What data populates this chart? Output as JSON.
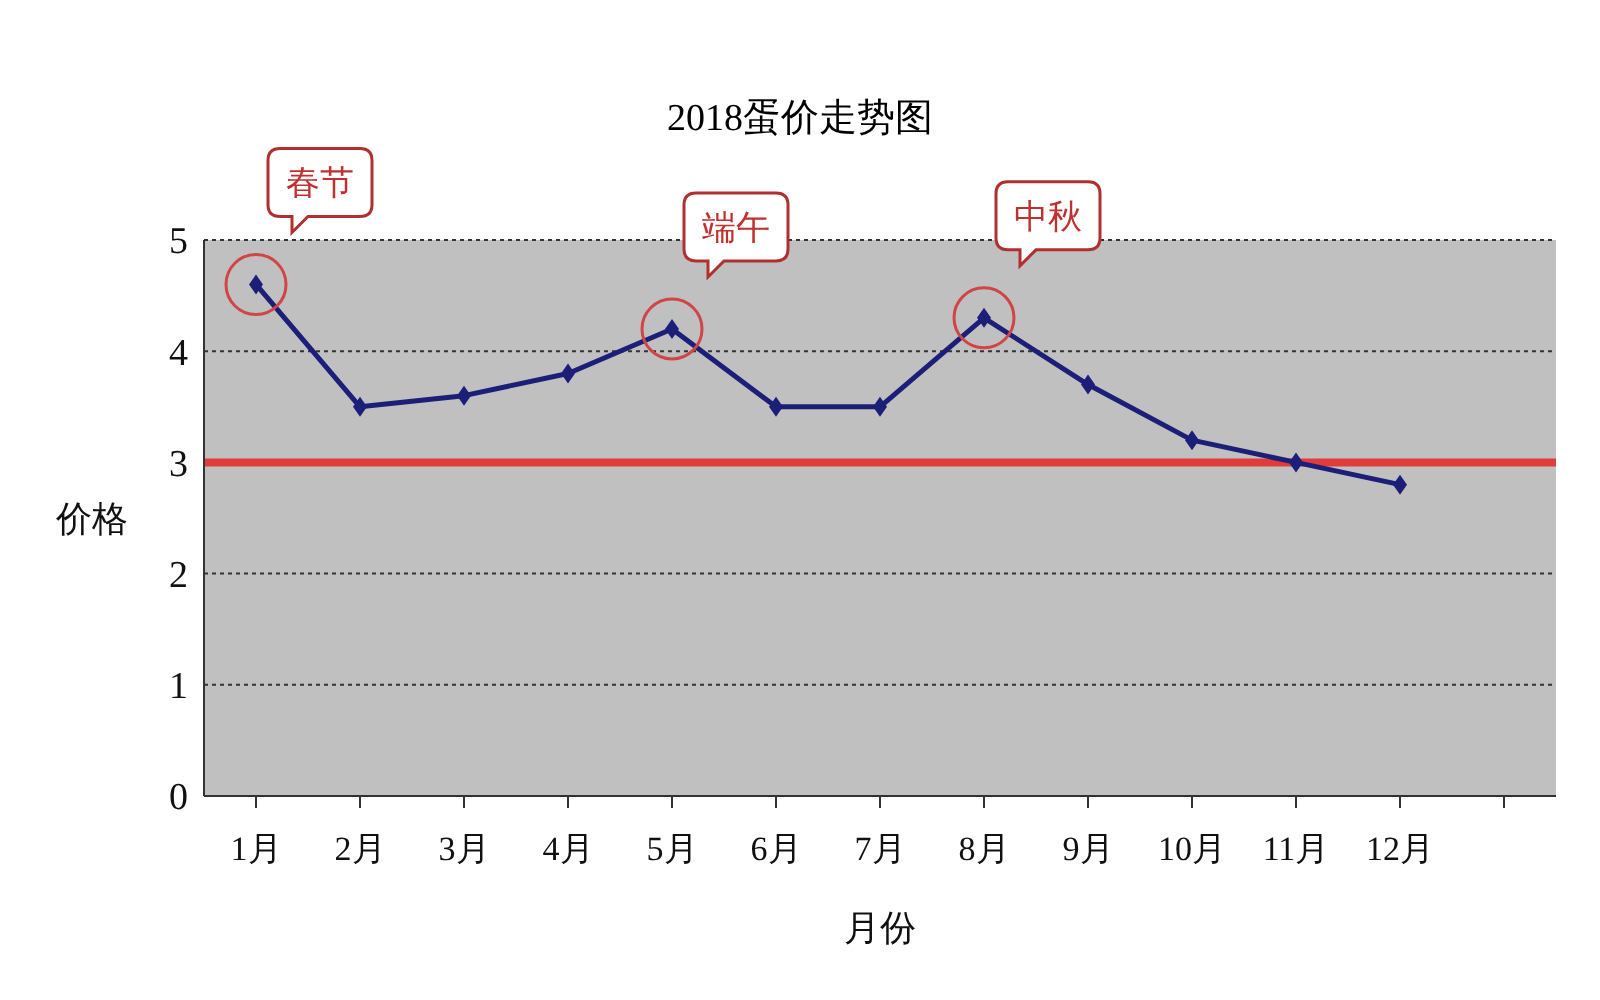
{
  "chart_data": {
    "type": "line",
    "title": "2018蛋价走势图",
    "xlabel": "月份",
    "ylabel": "价格",
    "categories": [
      "1月",
      "2月",
      "3月",
      "4月",
      "5月",
      "6月",
      "7月",
      "8月",
      "9月",
      "10月",
      "11月",
      "12月",
      null
    ],
    "series": [
      {
        "color": "#1c1f78",
        "values": [
          4.6,
          3.5,
          3.6,
          3.8,
          4.2,
          3.5,
          3.5,
          4.3,
          3.7,
          3.2,
          3.0,
          2.8,
          null
        ]
      }
    ],
    "ylim": [
      0,
      5
    ],
    "yticks": [
      0,
      1,
      2,
      3,
      4,
      5
    ],
    "grid": "y",
    "marker": "diamond",
    "line_style": "solid",
    "legend": false,
    "ref_lines": [
      {
        "axis": "y",
        "value": 3,
        "color": "#e03c3c"
      }
    ],
    "annotations": [
      {
        "text": "春节",
        "x": "1月",
        "y": 4.6
      },
      {
        "text": "端午",
        "x": "5月",
        "y": 4.2
      },
      {
        "text": "中秋",
        "x": "8月",
        "y": 4.3
      }
    ]
  }
}
